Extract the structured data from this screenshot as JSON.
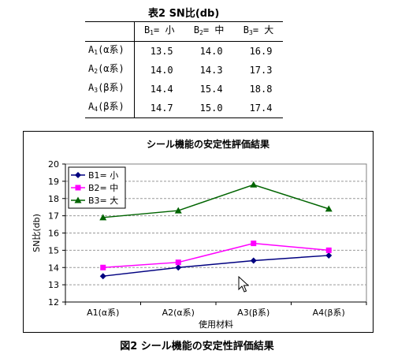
{
  "table": {
    "title": "表2 SN比(db)",
    "columns": [
      {
        "main": "B",
        "sub": "1",
        "rest": "= 小"
      },
      {
        "main": "B",
        "sub": "2",
        "rest": "= 中"
      },
      {
        "main": "B",
        "sub": "3",
        "rest": "= 大"
      }
    ],
    "rows": [
      {
        "main": "A",
        "sub": "1",
        "rest": "(α系)",
        "values": [
          "13.5",
          "14.0",
          "16.9"
        ]
      },
      {
        "main": "A",
        "sub": "2",
        "rest": "(α系)",
        "values": [
          "14.0",
          "14.3",
          "17.3"
        ]
      },
      {
        "main": "A",
        "sub": "3",
        "rest": "(β系)",
        "values": [
          "14.4",
          "15.4",
          "18.8"
        ]
      },
      {
        "main": "A",
        "sub": "4",
        "rest": "(β系)",
        "values": [
          "14.7",
          "15.0",
          "17.4"
        ]
      }
    ]
  },
  "chart_data": {
    "type": "line",
    "title": "シール機能の安定性評価結果",
    "xlabel": "使用材料",
    "ylabel": "SN比(db)",
    "categories": [
      "A1(α系)",
      "A2(α系)",
      "A3(β系)",
      "A4(β系)"
    ],
    "ylim": [
      12,
      20
    ],
    "yticks": [
      12,
      13,
      14,
      15,
      16,
      17,
      18,
      19,
      20
    ],
    "grid": "horizontal dashed",
    "legend_position": "top-left",
    "series": [
      {
        "name": "B1= 小",
        "color": "#000080",
        "marker": "diamond",
        "values": [
          13.5,
          14.0,
          14.4,
          14.7
        ]
      },
      {
        "name": "B2= 中",
        "color": "#ff00ff",
        "marker": "square",
        "values": [
          14.0,
          14.3,
          15.4,
          15.0
        ]
      },
      {
        "name": "B3= 大",
        "color": "#006400",
        "marker": "triangle",
        "values": [
          16.9,
          17.3,
          18.8,
          17.4
        ]
      }
    ]
  },
  "caption": "図2 シール機能の安定性評価結果",
  "icons": {
    "cursor": "mouse-pointer-icon"
  }
}
